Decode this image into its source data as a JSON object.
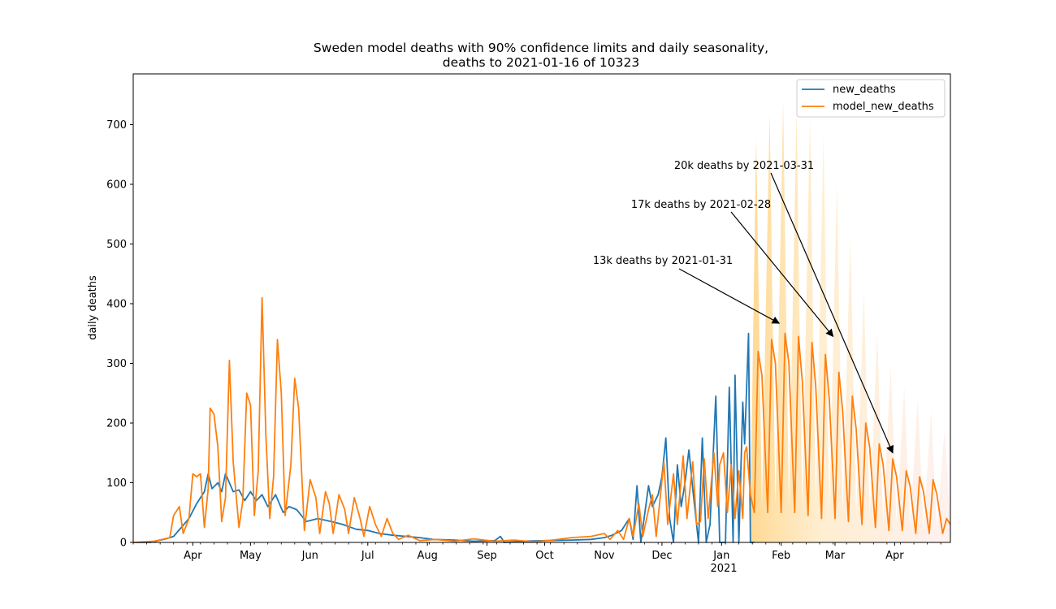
{
  "chart_data": {
    "type": "line",
    "title_line1": "Sweden model deaths with 90% confidence limits and daily seasonality,",
    "title_line2": "deaths to 2021-01-16 of 10323",
    "ylabel": "daily deaths",
    "xlabel": "",
    "ylim": [
      0,
      785
    ],
    "xlim": [
      "2020-03-01",
      "2021-04-30"
    ],
    "grid": false,
    "legend_position": "top-right",
    "y_ticks": [
      0,
      100,
      200,
      300,
      400,
      500,
      600,
      700
    ],
    "x_ticks": [
      {
        "date": "2020-04-01",
        "label": "Apr"
      },
      {
        "date": "2020-05-01",
        "label": "May"
      },
      {
        "date": "2020-06-01",
        "label": "Jun"
      },
      {
        "date": "2020-07-01",
        "label": "Jul"
      },
      {
        "date": "2020-08-01",
        "label": "Aug"
      },
      {
        "date": "2020-09-01",
        "label": "Sep"
      },
      {
        "date": "2020-10-01",
        "label": "Oct"
      },
      {
        "date": "2020-11-01",
        "label": "Nov"
      },
      {
        "date": "2020-12-01",
        "label": "Dec"
      },
      {
        "date": "2021-01-01",
        "label": "Jan"
      },
      {
        "date": "2021-02-01",
        "label": "Feb"
      },
      {
        "date": "2021-03-01",
        "label": "Mar"
      },
      {
        "date": "2021-04-01",
        "label": "Apr"
      }
    ],
    "year_label": {
      "date": "2021-01-01",
      "label": "2021"
    },
    "colors": {
      "new_deaths": "#1f77b4",
      "model_new_deaths": "#ff7f0e",
      "confidence_band": "#ffd27f"
    },
    "series": [
      {
        "name": "new_deaths",
        "points": [
          [
            "2020-03-01",
            0
          ],
          [
            "2020-03-10",
            0
          ],
          [
            "2020-03-14",
            3
          ],
          [
            "2020-03-18",
            6
          ],
          [
            "2020-03-22",
            10
          ],
          [
            "2020-03-26",
            25
          ],
          [
            "2020-03-30",
            40
          ],
          [
            "2020-04-03",
            65
          ],
          [
            "2020-04-07",
            85
          ],
          [
            "2020-04-09",
            115
          ],
          [
            "2020-04-11",
            90
          ],
          [
            "2020-04-14",
            100
          ],
          [
            "2020-04-16",
            85
          ],
          [
            "2020-04-18",
            115
          ],
          [
            "2020-04-22",
            85
          ],
          [
            "2020-04-25",
            88
          ],
          [
            "2020-04-28",
            70
          ],
          [
            "2020-05-01",
            85
          ],
          [
            "2020-05-04",
            70
          ],
          [
            "2020-05-07",
            80
          ],
          [
            "2020-05-10",
            60
          ],
          [
            "2020-05-14",
            80
          ],
          [
            "2020-05-18",
            50
          ],
          [
            "2020-05-21",
            60
          ],
          [
            "2020-05-25",
            55
          ],
          [
            "2020-05-30",
            35
          ],
          [
            "2020-06-05",
            40
          ],
          [
            "2020-06-12",
            35
          ],
          [
            "2020-06-18",
            30
          ],
          [
            "2020-06-25",
            22
          ],
          [
            "2020-07-01",
            20
          ],
          [
            "2020-07-07",
            15
          ],
          [
            "2020-07-14",
            12
          ],
          [
            "2020-07-21",
            10
          ],
          [
            "2020-07-28",
            8
          ],
          [
            "2020-08-04",
            5
          ],
          [
            "2020-08-15",
            4
          ],
          [
            "2020-08-25",
            2
          ],
          [
            "2020-09-05",
            3
          ],
          [
            "2020-09-08",
            10
          ],
          [
            "2020-09-10",
            0
          ],
          [
            "2020-09-20",
            2
          ],
          [
            "2020-10-01",
            3
          ],
          [
            "2020-10-15",
            4
          ],
          [
            "2020-10-25",
            5
          ],
          [
            "2020-11-01",
            8
          ],
          [
            "2020-11-05",
            12
          ],
          [
            "2020-11-10",
            20
          ],
          [
            "2020-11-14",
            40
          ],
          [
            "2020-11-16",
            5
          ],
          [
            "2020-11-18",
            95
          ],
          [
            "2020-11-20",
            0
          ],
          [
            "2020-11-24",
            95
          ],
          [
            "2020-11-26",
            60
          ],
          [
            "2020-11-29",
            80
          ],
          [
            "2020-12-01",
            110
          ],
          [
            "2020-12-03",
            175
          ],
          [
            "2020-12-05",
            40
          ],
          [
            "2020-12-07",
            0
          ],
          [
            "2020-12-09",
            130
          ],
          [
            "2020-12-11",
            60
          ],
          [
            "2020-12-13",
            100
          ],
          [
            "2020-12-15",
            155
          ],
          [
            "2020-12-17",
            90
          ],
          [
            "2020-12-20",
            0
          ],
          [
            "2020-12-22",
            175
          ],
          [
            "2020-12-24",
            0
          ],
          [
            "2020-12-26",
            30
          ],
          [
            "2020-12-29",
            245
          ],
          [
            "2020-12-31",
            0
          ],
          [
            "2021-01-03",
            0
          ],
          [
            "2021-01-05",
            260
          ],
          [
            "2021-01-07",
            0
          ],
          [
            "2021-01-08",
            280
          ],
          [
            "2021-01-10",
            0
          ],
          [
            "2021-01-12",
            235
          ],
          [
            "2021-01-13",
            165
          ],
          [
            "2021-01-15",
            350
          ],
          [
            "2021-01-16",
            0
          ],
          [
            "2021-01-18",
            0
          ]
        ]
      },
      {
        "name": "model_new_deaths",
        "points": [
          [
            "2020-03-01",
            0
          ],
          [
            "2020-03-12",
            2
          ],
          [
            "2020-03-20",
            8
          ],
          [
            "2020-03-22",
            45
          ],
          [
            "2020-03-25",
            60
          ],
          [
            "2020-03-27",
            15
          ],
          [
            "2020-03-30",
            40
          ],
          [
            "2020-04-01",
            115
          ],
          [
            "2020-04-03",
            110
          ],
          [
            "2020-04-05",
            115
          ],
          [
            "2020-04-07",
            25
          ],
          [
            "2020-04-09",
            90
          ],
          [
            "2020-04-10",
            225
          ],
          [
            "2020-04-12",
            215
          ],
          [
            "2020-04-14",
            160
          ],
          [
            "2020-04-16",
            35
          ],
          [
            "2020-04-18",
            75
          ],
          [
            "2020-04-20",
            305
          ],
          [
            "2020-04-22",
            135
          ],
          [
            "2020-04-25",
            25
          ],
          [
            "2020-04-27",
            70
          ],
          [
            "2020-04-29",
            250
          ],
          [
            "2020-05-01",
            230
          ],
          [
            "2020-05-03",
            45
          ],
          [
            "2020-05-05",
            120
          ],
          [
            "2020-05-07",
            410
          ],
          [
            "2020-05-09",
            180
          ],
          [
            "2020-05-11",
            40
          ],
          [
            "2020-05-13",
            110
          ],
          [
            "2020-05-15",
            340
          ],
          [
            "2020-05-17",
            250
          ],
          [
            "2020-05-19",
            45
          ],
          [
            "2020-05-22",
            130
          ],
          [
            "2020-05-24",
            275
          ],
          [
            "2020-05-26",
            225
          ],
          [
            "2020-05-29",
            20
          ],
          [
            "2020-06-01",
            105
          ],
          [
            "2020-06-04",
            75
          ],
          [
            "2020-06-06",
            15
          ],
          [
            "2020-06-09",
            85
          ],
          [
            "2020-06-11",
            65
          ],
          [
            "2020-06-13",
            15
          ],
          [
            "2020-06-16",
            80
          ],
          [
            "2020-06-19",
            55
          ],
          [
            "2020-06-21",
            15
          ],
          [
            "2020-06-24",
            75
          ],
          [
            "2020-06-27",
            40
          ],
          [
            "2020-06-29",
            10
          ],
          [
            "2020-07-02",
            60
          ],
          [
            "2020-07-05",
            30
          ],
          [
            "2020-07-08",
            10
          ],
          [
            "2020-07-11",
            40
          ],
          [
            "2020-07-14",
            15
          ],
          [
            "2020-07-17",
            5
          ],
          [
            "2020-07-22",
            12
          ],
          [
            "2020-07-28",
            3
          ],
          [
            "2020-08-05",
            5
          ],
          [
            "2020-08-15",
            2
          ],
          [
            "2020-08-25",
            6
          ],
          [
            "2020-09-05",
            2
          ],
          [
            "2020-09-15",
            4
          ],
          [
            "2020-09-25",
            1
          ],
          [
            "2020-10-05",
            4
          ],
          [
            "2020-10-15",
            8
          ],
          [
            "2020-10-25",
            10
          ],
          [
            "2020-11-01",
            15
          ],
          [
            "2020-11-04",
            5
          ],
          [
            "2020-11-08",
            20
          ],
          [
            "2020-11-11",
            5
          ],
          [
            "2020-11-14",
            40
          ],
          [
            "2020-11-16",
            10
          ],
          [
            "2020-11-19",
            65
          ],
          [
            "2020-11-21",
            10
          ],
          [
            "2020-11-24",
            55
          ],
          [
            "2020-11-26",
            80
          ],
          [
            "2020-11-28",
            10
          ],
          [
            "2020-12-02",
            135
          ],
          [
            "2020-12-04",
            30
          ],
          [
            "2020-12-07",
            115
          ],
          [
            "2020-12-09",
            30
          ],
          [
            "2020-12-12",
            145
          ],
          [
            "2020-12-14",
            40
          ],
          [
            "2020-12-17",
            135
          ],
          [
            "2020-12-19",
            30
          ],
          [
            "2020-12-21",
            35
          ],
          [
            "2020-12-23",
            140
          ],
          [
            "2020-12-25",
            40
          ],
          [
            "2020-12-28",
            150
          ],
          [
            "2020-12-30",
            60
          ],
          [
            "2020-12-31",
            130
          ],
          [
            "2021-01-02",
            150
          ],
          [
            "2021-01-04",
            50
          ],
          [
            "2021-01-06",
            130
          ],
          [
            "2021-01-08",
            40
          ],
          [
            "2021-01-10",
            120
          ],
          [
            "2021-01-12",
            40
          ],
          [
            "2021-01-13",
            150
          ],
          [
            "2021-01-14",
            160
          ],
          [
            "2021-01-16",
            80
          ],
          [
            "2021-01-18",
            50
          ],
          [
            "2021-01-20",
            320
          ],
          [
            "2021-01-22",
            280
          ],
          [
            "2021-01-25",
            50
          ],
          [
            "2021-01-27",
            340
          ],
          [
            "2021-01-29",
            300
          ],
          [
            "2021-02-01",
            50
          ],
          [
            "2021-02-03",
            350
          ],
          [
            "2021-02-05",
            300
          ],
          [
            "2021-02-08",
            50
          ],
          [
            "2021-02-10",
            345
          ],
          [
            "2021-02-12",
            270
          ],
          [
            "2021-02-15",
            45
          ],
          [
            "2021-02-17",
            335
          ],
          [
            "2021-02-19",
            260
          ],
          [
            "2021-02-22",
            40
          ],
          [
            "2021-02-24",
            315
          ],
          [
            "2021-02-26",
            240
          ],
          [
            "2021-03-01",
            40
          ],
          [
            "2021-03-03",
            285
          ],
          [
            "2021-03-05",
            220
          ],
          [
            "2021-03-08",
            35
          ],
          [
            "2021-03-10",
            245
          ],
          [
            "2021-03-12",
            190
          ],
          [
            "2021-03-15",
            30
          ],
          [
            "2021-03-17",
            200
          ],
          [
            "2021-03-19",
            160
          ],
          [
            "2021-03-22",
            25
          ],
          [
            "2021-03-24",
            165
          ],
          [
            "2021-03-26",
            130
          ],
          [
            "2021-03-29",
            20
          ],
          [
            "2021-03-31",
            140
          ],
          [
            "2021-04-02",
            110
          ],
          [
            "2021-04-05",
            20
          ],
          [
            "2021-04-07",
            120
          ],
          [
            "2021-04-09",
            95
          ],
          [
            "2021-04-12",
            15
          ],
          [
            "2021-04-14",
            110
          ],
          [
            "2021-04-16",
            85
          ],
          [
            "2021-04-19",
            15
          ],
          [
            "2021-04-21",
            105
          ],
          [
            "2021-04-23",
            80
          ],
          [
            "2021-04-26",
            15
          ],
          [
            "2021-04-28",
            40
          ],
          [
            "2021-04-30",
            30
          ]
        ]
      }
    ],
    "confidence_band": [
      [
        "2021-01-16",
        50
      ],
      [
        "2021-01-19",
        680
      ],
      [
        "2021-01-22",
        60
      ],
      [
        "2021-01-26",
        720
      ],
      [
        "2021-01-29",
        60
      ],
      [
        "2021-02-02",
        740
      ],
      [
        "2021-02-05",
        60
      ],
      [
        "2021-02-09",
        720
      ],
      [
        "2021-02-12",
        60
      ],
      [
        "2021-02-16",
        710
      ],
      [
        "2021-02-19",
        60
      ],
      [
        "2021-02-23",
        680
      ],
      [
        "2021-02-26",
        50
      ],
      [
        "2021-03-02",
        600
      ],
      [
        "2021-03-05",
        50
      ],
      [
        "2021-03-09",
        510
      ],
      [
        "2021-03-12",
        45
      ],
      [
        "2021-03-16",
        420
      ],
      [
        "2021-03-19",
        40
      ],
      [
        "2021-03-23",
        350
      ],
      [
        "2021-03-26",
        35
      ],
      [
        "2021-03-30",
        295
      ],
      [
        "2021-04-02",
        30
      ],
      [
        "2021-04-06",
        260
      ],
      [
        "2021-04-09",
        25
      ],
      [
        "2021-04-13",
        240
      ],
      [
        "2021-04-16",
        25
      ],
      [
        "2021-04-20",
        220
      ],
      [
        "2021-04-23",
        20
      ],
      [
        "2021-04-27",
        190
      ],
      [
        "2021-04-30",
        30
      ]
    ],
    "annotations": [
      {
        "text": "20k deaths by 2021-03-31",
        "target": [
          "2021-03-31",
          150
        ]
      },
      {
        "text": "17k deaths by 2021-02-28",
        "target": [
          "2021-02-28",
          345
        ]
      },
      {
        "text": "13k deaths by 2021-01-31",
        "target": [
          "2021-01-31",
          367
        ]
      }
    ]
  }
}
